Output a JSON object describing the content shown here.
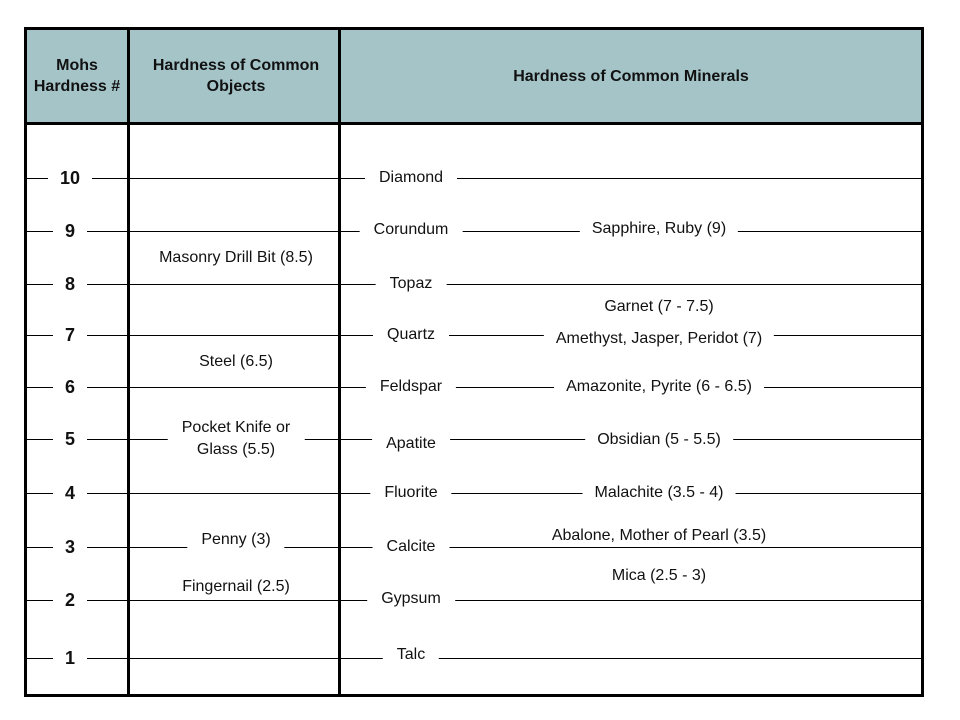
{
  "headers": {
    "hardness": "Mohs Hardness #",
    "objects": "Hardness of Common Objects",
    "minerals": "Hardness of Common Minerals"
  },
  "colors": {
    "header_fill": "#a4c4c8",
    "border": "#000000"
  },
  "rows": [
    {
      "number": "10",
      "mineral": "Diamond"
    },
    {
      "number": "9",
      "mineral": "Corundum"
    },
    {
      "number": "8",
      "mineral": "Topaz"
    },
    {
      "number": "7",
      "mineral": "Quartz"
    },
    {
      "number": "6",
      "mineral": "Feldspar"
    },
    {
      "number": "5",
      "mineral": "Apatite"
    },
    {
      "number": "4",
      "mineral": "Fluorite"
    },
    {
      "number": "3",
      "mineral": "Calcite"
    },
    {
      "number": "2",
      "mineral": "Gypsum"
    },
    {
      "number": "1",
      "mineral": "Talc"
    }
  ],
  "objects": [
    {
      "text": "Masonry Drill Bit (8.5)"
    },
    {
      "text": "Steel (6.5)"
    },
    {
      "text": "Pocket Knife or Glass (5.5)",
      "lines": [
        "Pocket Knife or",
        "Glass (5.5)"
      ]
    },
    {
      "text": "Penny (3)"
    },
    {
      "text": "Fingernail (2.5)"
    }
  ],
  "examples": [
    {
      "text": "Sapphire, Ruby (9)"
    },
    {
      "text": "Garnet (7 - 7.5)"
    },
    {
      "text": "Amethyst, Jasper, Peridot (7)"
    },
    {
      "text": "Amazonite, Pyrite (6 - 6.5)"
    },
    {
      "text": "Obsidian (5 - 5.5)"
    },
    {
      "text": "Malachite (3.5 - 4)"
    },
    {
      "text": "Abalone, Mother of Pearl (3.5)"
    },
    {
      "text": "Mica (2.5 - 3)"
    }
  ]
}
